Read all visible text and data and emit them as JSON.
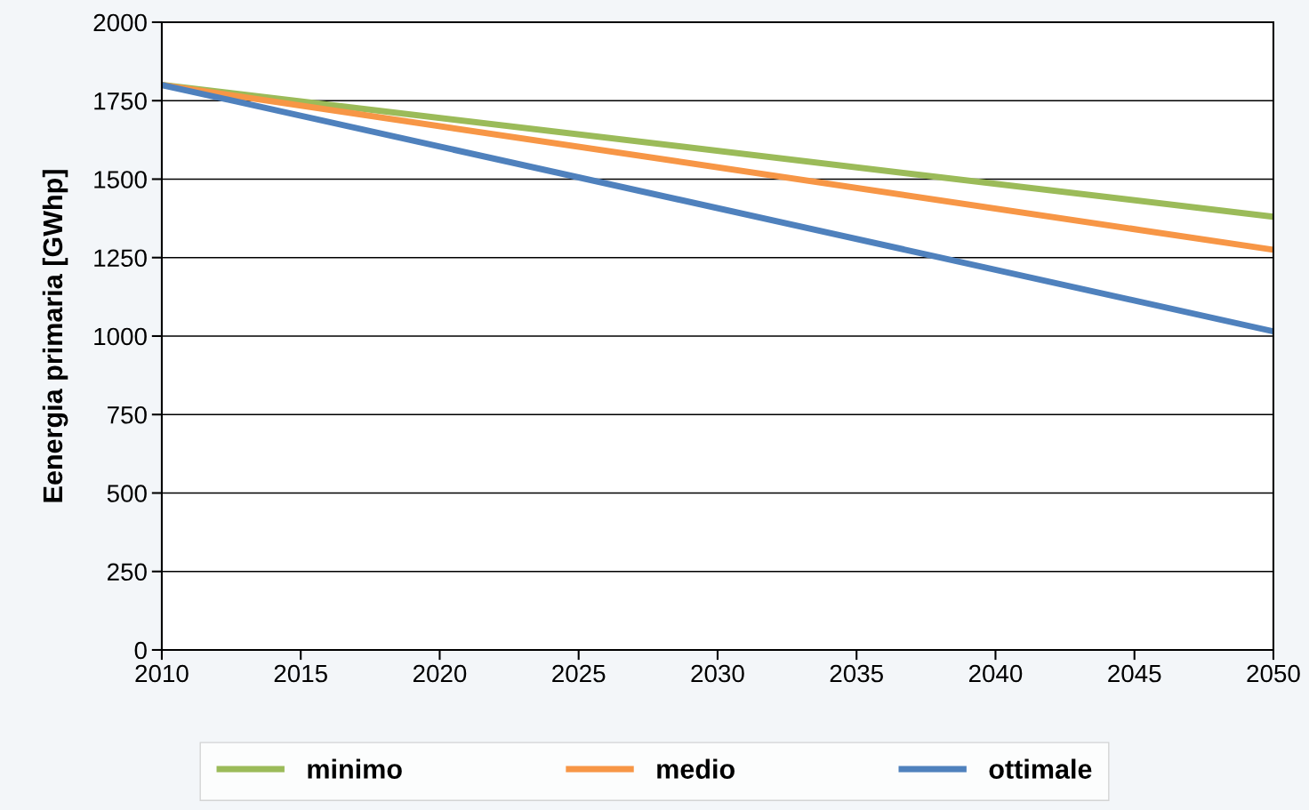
{
  "chart_data": {
    "type": "line",
    "ylabel": "Eenergia primaria [GWhp]",
    "x": [
      2010,
      2050
    ],
    "series": [
      {
        "name": "minimo",
        "color": "#9bbb59",
        "values": [
          1800,
          1380
        ]
      },
      {
        "name": "medio",
        "color": "#f79646",
        "values": [
          1800,
          1275
        ]
      },
      {
        "name": "ottimale",
        "color": "#4f81bd",
        "values": [
          1800,
          1015
        ]
      }
    ],
    "xlim": [
      2010,
      2050
    ],
    "xticks": [
      2010,
      2015,
      2020,
      2025,
      2030,
      2035,
      2040,
      2045,
      2050
    ],
    "ylim": [
      0,
      2000
    ],
    "yticks": [
      0,
      250,
      500,
      750,
      1000,
      1250,
      1500,
      1750,
      2000
    ],
    "grid": "y",
    "legend": "bottom",
    "marker": "none",
    "line_style": "solid"
  }
}
